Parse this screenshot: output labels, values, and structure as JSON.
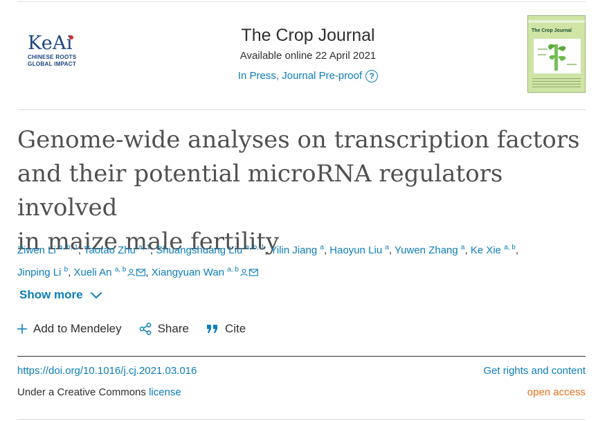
{
  "publisher": {
    "brand": "KeAi",
    "tagline_1": "CHINESE ROOTS",
    "tagline_2": "GLOBAL IMPACT"
  },
  "journal": {
    "title": "The Crop Journal",
    "available": "Available online 22 April 2021",
    "status": "In Press, Journal Pre-proof",
    "help_icon": "question-circle-icon"
  },
  "cover": {
    "title": "The Crop Journal",
    "background": "#cfe4a5"
  },
  "article": {
    "title_line_1": "Genome-wide analyses on transcription factors",
    "title_line_2": "and their potential microRNA regulators involved",
    "title_line_3": "in maize male fertility"
  },
  "authors": [
    {
      "name": "Ziwen Li",
      "sup": "a, b, 1"
    },
    {
      "name": "Taotao Zhu",
      "sup": "a, 1"
    },
    {
      "name": "Shuangshuang Liu",
      "sup": "a, b, 1"
    },
    {
      "name": "Yilin Jiang",
      "sup": "a"
    },
    {
      "name": "Haoyun Liu",
      "sup": "a"
    },
    {
      "name": "Yuwen Zhang",
      "sup": "a"
    },
    {
      "name": "Ke Xie",
      "sup": "a, b"
    },
    {
      "name": "Jinping Li",
      "sup": "b"
    },
    {
      "name": "Xueli An",
      "sup": "a, b"
    },
    {
      "name": "Xiangyuan Wan",
      "sup": "a, b"
    }
  ],
  "show_more": "Show more",
  "actions": {
    "mendeley": "Add to Mendeley",
    "share": "Share",
    "cite": "Cite"
  },
  "footer": {
    "doi": "https://doi.org/10.1016/j.cj.2021.03.016",
    "license_prefix": "Under a Creative Commons",
    "license_link": "license",
    "rights": "Get rights and content",
    "open_access": "open access"
  },
  "colors": {
    "link": "#0c7dbb",
    "brand": "#1b4580",
    "open_access": "#e9711c"
  }
}
